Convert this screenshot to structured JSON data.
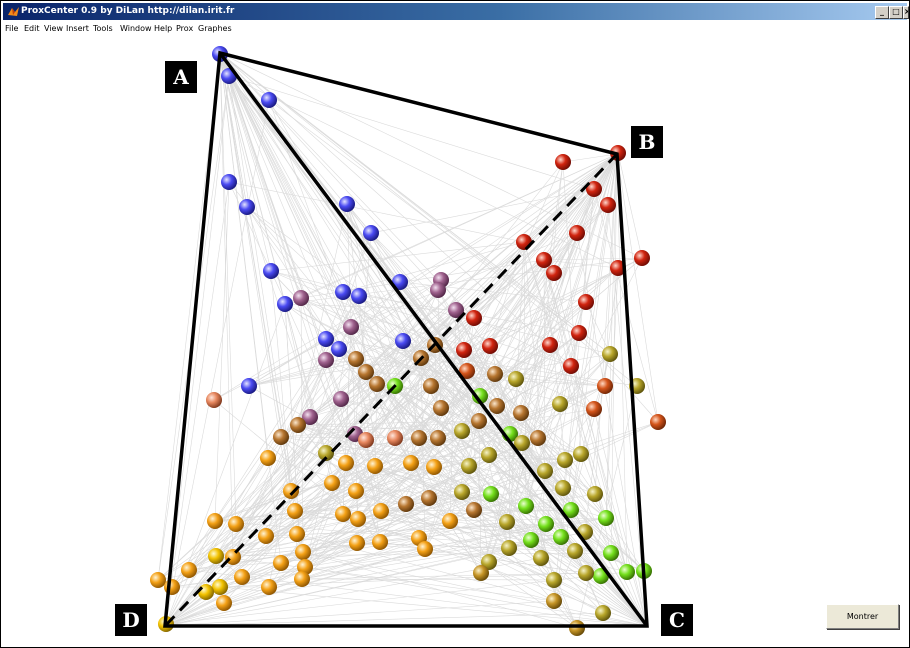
{
  "window": {
    "title": "ProxCenter 0.9 by DiLan http://dilan.irit.fr"
  },
  "title_controls": {
    "minimize": "_",
    "maximize": "□",
    "close": "×"
  },
  "menu": [
    "File",
    "Edit",
    "View",
    "Insert",
    "Tools",
    "Window",
    "Help",
    "Prox",
    "Graphes"
  ],
  "corners": {
    "a": "A",
    "b": "B",
    "c": "C",
    "d": "D"
  },
  "buttons": {
    "montrer": "Montrer"
  },
  "colors": {
    "edge": "#d4d4d4",
    "outline": "#000000",
    "blue": "#3f3ff0",
    "red": "#cc1b0e",
    "orange": "#f4a116",
    "green": "#7fe021"
  }
}
